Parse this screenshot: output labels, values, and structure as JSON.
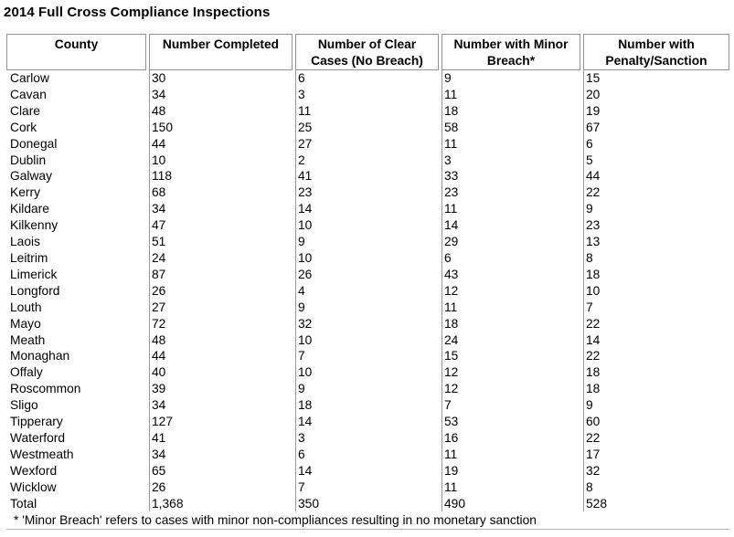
{
  "title": "2014 Full Cross Compliance Inspections",
  "table": {
    "headers": [
      "County",
      "Number Completed",
      "Number of Clear\nCases (No Breach)",
      "Number with Minor\nBreach*",
      "Number with\nPenalty/Sanction"
    ],
    "rows": [
      [
        "Carlow",
        "30",
        "6",
        "9",
        "15"
      ],
      [
        "Cavan",
        "34",
        "3",
        "11",
        "20"
      ],
      [
        "Clare",
        "48",
        "11",
        "18",
        "19"
      ],
      [
        "Cork",
        "150",
        "25",
        "58",
        "67"
      ],
      [
        "Donegal",
        "44",
        "27",
        "11",
        "6"
      ],
      [
        "Dublin",
        "10",
        "2",
        "3",
        "5"
      ],
      [
        "Galway",
        "118",
        "41",
        "33",
        "44"
      ],
      [
        "Kerry",
        "68",
        "23",
        "23",
        "22"
      ],
      [
        "Kildare",
        "34",
        "14",
        "11",
        "9"
      ],
      [
        "Kilkenny",
        "47",
        "10",
        "14",
        "23"
      ],
      [
        "Laois",
        "51",
        "9",
        "29",
        "13"
      ],
      [
        "Leitrim",
        "24",
        "10",
        "6",
        "8"
      ],
      [
        "Limerick",
        "87",
        "26",
        "43",
        "18"
      ],
      [
        "Longford",
        "26",
        "4",
        "12",
        "10"
      ],
      [
        "Louth",
        "27",
        "9",
        "11",
        "7"
      ],
      [
        "Mayo",
        "72",
        "32",
        "18",
        "22"
      ],
      [
        "Meath",
        "48",
        "10",
        "24",
        "14"
      ],
      [
        "Monaghan",
        "44",
        "7",
        "15",
        "22"
      ],
      [
        "Offaly",
        "40",
        "10",
        "12",
        "18"
      ],
      [
        "Roscommon",
        "39",
        "9",
        "12",
        "18"
      ],
      [
        "Sligo",
        "34",
        "18",
        "7",
        "9"
      ],
      [
        "Tipperary",
        "127",
        "14",
        "53",
        "60"
      ],
      [
        "Waterford",
        "41",
        "3",
        "16",
        "22"
      ],
      [
        "Westmeath",
        "34",
        "6",
        "11",
        "17"
      ],
      [
        "Wexford",
        "65",
        "14",
        "19",
        "32"
      ],
      [
        "Wicklow",
        "26",
        "7",
        "11",
        "8"
      ]
    ],
    "total_row": [
      "Total",
      "1,368",
      "350",
      "490",
      "528"
    ],
    "footnote": "* 'Minor Breach' refers to cases with minor non-compliances resulting in no monetary sanction"
  },
  "colors": {
    "border_gray": "#9a9a9a",
    "text": "#000000",
    "background": "#ffffff"
  }
}
